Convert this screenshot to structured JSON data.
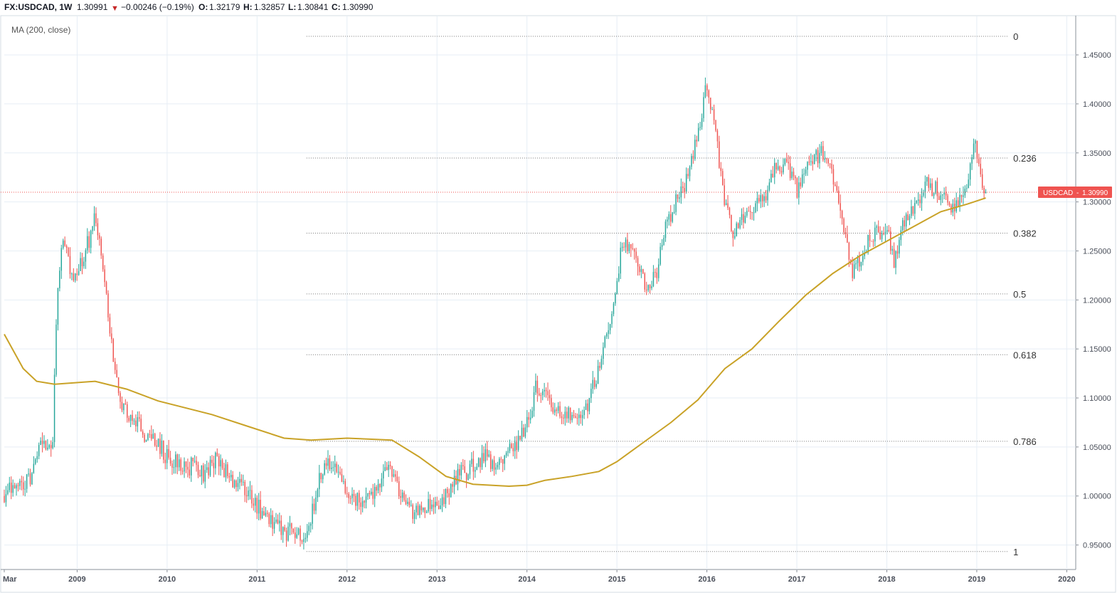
{
  "header": {
    "symbol": "FX:USDCAD, 1W",
    "last": "1.30991",
    "change": "−0.00246 (−0.19%)",
    "o_label": "O:",
    "o_value": "1.32179",
    "h_label": "H:",
    "h_value": "1.32857",
    "l_label": "L:",
    "l_value": "1.30841",
    "c_label": "C:",
    "c_value": "1.30990"
  },
  "indicator_label": "MA (200, close)",
  "price_badge": {
    "label": "USDCAD",
    "value": "1.30990"
  },
  "colors": {
    "up": "#26a69a",
    "down": "#ef5350",
    "ma": "#c9a227",
    "fib_line": "#777777",
    "price_line": "#ef5350",
    "grid": "#e6eef5",
    "badge_bg": "#ef5350",
    "change_down": "#ef5350"
  },
  "chart_data": {
    "type": "candlestick",
    "interval": "1W",
    "symbol": "USDCAD",
    "y_range": [
      0.925,
      1.49
    ],
    "x_range": [
      2008.19,
      2020.1
    ],
    "grid": true,
    "y_ticks": [
      "0.95000",
      "1.00000",
      "1.05000",
      "1.10000",
      "1.15000",
      "1.20000",
      "1.25000",
      "1.30000",
      "1.35000",
      "1.40000",
      "1.45000"
    ],
    "x_ticks": [
      {
        "label": "Mar",
        "t": 2008.19
      },
      {
        "label": "2009",
        "t": 2009.0
      },
      {
        "label": "2010",
        "t": 2010.0
      },
      {
        "label": "2011",
        "t": 2011.0
      },
      {
        "label": "2012",
        "t": 2012.0
      },
      {
        "label": "2013",
        "t": 2013.0
      },
      {
        "label": "2014",
        "t": 2014.0
      },
      {
        "label": "2015",
        "t": 2015.0
      },
      {
        "label": "2016",
        "t": 2016.0
      },
      {
        "label": "2017",
        "t": 2017.0
      },
      {
        "label": "2018",
        "t": 2018.0
      },
      {
        "label": "2019",
        "t": 2019.0
      },
      {
        "label": "2020",
        "t": 2020.0
      }
    ],
    "last_price": 1.3099,
    "fibonacci": {
      "start_t": 2011.55,
      "end_t": 2019.35,
      "levels": [
        {
          "label": "0",
          "price": 1.4689
        },
        {
          "label": "0.236",
          "price": 1.3448
        },
        {
          "label": "0.382",
          "price": 1.2681
        },
        {
          "label": "0.5",
          "price": 1.2061
        },
        {
          "label": "0.618",
          "price": 1.1441
        },
        {
          "label": "0.786",
          "price": 1.0558
        },
        {
          "label": "1",
          "price": 0.9433
        }
      ]
    },
    "price_path": [
      [
        2008.19,
        1.0
      ],
      [
        2008.35,
        1.01
      ],
      [
        2008.5,
        1.02
      ],
      [
        2008.62,
        1.06
      ],
      [
        2008.72,
        1.04
      ],
      [
        2008.78,
        1.21
      ],
      [
        2008.85,
        1.26
      ],
      [
        2008.95,
        1.22
      ],
      [
        2009.1,
        1.25
      ],
      [
        2009.2,
        1.29
      ],
      [
        2009.3,
        1.22
      ],
      [
        2009.42,
        1.13
      ],
      [
        2009.5,
        1.09
      ],
      [
        2009.62,
        1.08
      ],
      [
        2009.8,
        1.06
      ],
      [
        2010.0,
        1.04
      ],
      [
        2010.15,
        1.03
      ],
      [
        2010.3,
        1.03
      ],
      [
        2010.42,
        1.02
      ],
      [
        2010.55,
        1.04
      ],
      [
        2010.7,
        1.02
      ],
      [
        2010.85,
        1.01
      ],
      [
        2011.0,
        0.99
      ],
      [
        2011.2,
        0.97
      ],
      [
        2011.4,
        0.96
      ],
      [
        2011.55,
        0.96
      ],
      [
        2011.72,
        1.03
      ],
      [
        2011.85,
        1.03
      ],
      [
        2012.0,
        1.01
      ],
      [
        2012.15,
        0.99
      ],
      [
        2012.35,
        1.01
      ],
      [
        2012.45,
        1.03
      ],
      [
        2012.6,
        1.0
      ],
      [
        2012.75,
        0.98
      ],
      [
        2012.92,
        0.99
      ],
      [
        2013.05,
        0.99
      ],
      [
        2013.2,
        1.02
      ],
      [
        2013.4,
        1.03
      ],
      [
        2013.55,
        1.04
      ],
      [
        2013.7,
        1.03
      ],
      [
        2013.85,
        1.05
      ],
      [
        2014.0,
        1.07
      ],
      [
        2014.1,
        1.11
      ],
      [
        2014.25,
        1.1
      ],
      [
        2014.4,
        1.08
      ],
      [
        2014.55,
        1.08
      ],
      [
        2014.7,
        1.1
      ],
      [
        2014.85,
        1.15
      ],
      [
        2015.0,
        1.22
      ],
      [
        2015.05,
        1.26
      ],
      [
        2015.2,
        1.25
      ],
      [
        2015.32,
        1.21
      ],
      [
        2015.45,
        1.23
      ],
      [
        2015.55,
        1.28
      ],
      [
        2015.7,
        1.31
      ],
      [
        2015.8,
        1.33
      ],
      [
        2015.9,
        1.37
      ],
      [
        2016.0,
        1.42
      ],
      [
        2016.08,
        1.38
      ],
      [
        2016.2,
        1.3
      ],
      [
        2016.3,
        1.27
      ],
      [
        2016.45,
        1.29
      ],
      [
        2016.6,
        1.3
      ],
      [
        2016.75,
        1.33
      ],
      [
        2016.9,
        1.34
      ],
      [
        2017.0,
        1.31
      ],
      [
        2017.1,
        1.33
      ],
      [
        2017.25,
        1.35
      ],
      [
        2017.38,
        1.34
      ],
      [
        2017.5,
        1.28
      ],
      [
        2017.62,
        1.23
      ],
      [
        2017.7,
        1.24
      ],
      [
        2017.85,
        1.27
      ],
      [
        2018.0,
        1.27
      ],
      [
        2018.08,
        1.24
      ],
      [
        2018.2,
        1.28
      ],
      [
        2018.3,
        1.29
      ],
      [
        2018.45,
        1.32
      ],
      [
        2018.6,
        1.31
      ],
      [
        2018.75,
        1.29
      ],
      [
        2018.9,
        1.32
      ],
      [
        2018.97,
        1.36
      ],
      [
        2019.05,
        1.32
      ],
      [
        2019.1,
        1.31
      ]
    ],
    "moving_average": {
      "name": "MA (200, close)",
      "points": [
        [
          2008.19,
          1.165
        ],
        [
          2008.4,
          1.13
        ],
        [
          2008.55,
          1.117
        ],
        [
          2008.75,
          1.114
        ],
        [
          2009.2,
          1.117
        ],
        [
          2009.55,
          1.109
        ],
        [
          2009.9,
          1.097
        ],
        [
          2010.5,
          1.083
        ],
        [
          2010.9,
          1.071
        ],
        [
          2011.3,
          1.059
        ],
        [
          2011.6,
          1.057
        ],
        [
          2012.0,
          1.059
        ],
        [
          2012.5,
          1.057
        ],
        [
          2012.8,
          1.04
        ],
        [
          2013.1,
          1.02
        ],
        [
          2013.4,
          1.012
        ],
        [
          2013.8,
          1.01
        ],
        [
          2014.0,
          1.011
        ],
        [
          2014.2,
          1.016
        ],
        [
          2014.5,
          1.02
        ],
        [
          2014.8,
          1.025
        ],
        [
          2015.0,
          1.035
        ],
        [
          2015.3,
          1.055
        ],
        [
          2015.6,
          1.075
        ],
        [
          2015.9,
          1.098
        ],
        [
          2016.2,
          1.13
        ],
        [
          2016.5,
          1.15
        ],
        [
          2016.8,
          1.178
        ],
        [
          2017.1,
          1.205
        ],
        [
          2017.4,
          1.227
        ],
        [
          2017.7,
          1.245
        ],
        [
          2018.0,
          1.26
        ],
        [
          2018.3,
          1.275
        ],
        [
          2018.6,
          1.29
        ],
        [
          2018.9,
          1.298
        ],
        [
          2019.1,
          1.304
        ]
      ]
    }
  }
}
